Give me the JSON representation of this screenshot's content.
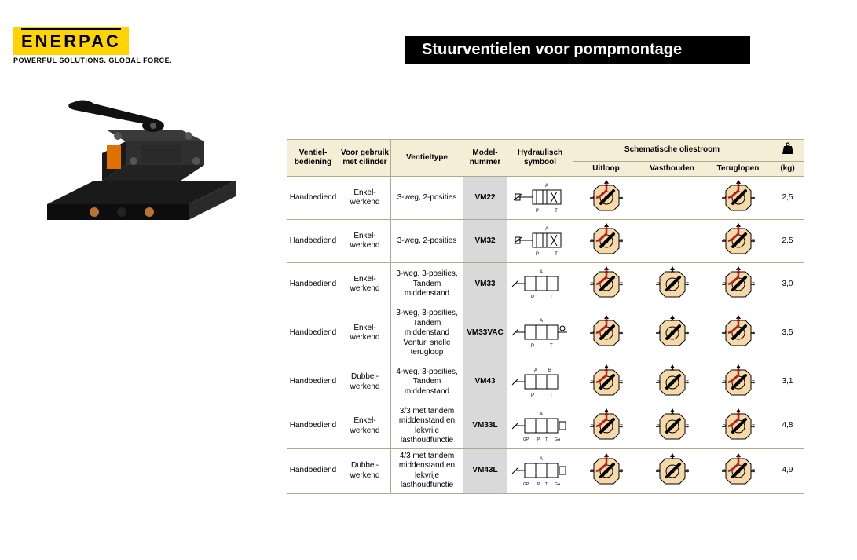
{
  "logo": {
    "brand": "ENERPAC",
    "tagline": "POWERFUL SOLUTIONS. GLOBAL FORCE."
  },
  "title": "Stuurventielen voor pompmontage",
  "colors": {
    "brand_yellow": "#ffd400",
    "header_bg": "#f5eed6",
    "border": "#b0a890",
    "model_bg": "#d9d9d9",
    "icon_fill": "#f6d9a8",
    "icon_accent": "#c21a1a",
    "black": "#000000"
  },
  "table": {
    "headers": {
      "ventiel": "Ventiel-\nbediening",
      "gebruik": "Voor gebruik\nmet cilinder",
      "type": "Ventieltype",
      "model": "Model-\nnummer",
      "hydr": "Hydraulisch\nsymbool",
      "schem": "Schematische oliestroom",
      "uitloop": "Uitloop",
      "vasthouden": "Vasthouden",
      "teruglopen": "Teruglopen",
      "weight_unit": "(kg)"
    },
    "rows": [
      {
        "ventiel": "Handbediend",
        "gebruik": "Enkel-\nwerkend",
        "type": "3-weg, 2-posities",
        "model": "VM22",
        "hydr": "3w2p",
        "uitloop": true,
        "vasthouden": false,
        "teruglopen": true,
        "weight": "2,5"
      },
      {
        "ventiel": "Handbediend",
        "gebruik": "Enkel-\nwerkend",
        "type": "3-weg, 2-posities",
        "model": "VM32",
        "hydr": "3w2p",
        "uitloop": true,
        "vasthouden": false,
        "teruglopen": true,
        "weight": "2,5"
      },
      {
        "ventiel": "Handbediend",
        "gebruik": "Enkel-\nwerkend",
        "type": "3-weg, 3-posities,\nTandem middenstand",
        "model": "VM33",
        "hydr": "3w3p",
        "uitloop": true,
        "vasthouden": true,
        "teruglopen": true,
        "weight": "3,0"
      },
      {
        "ventiel": "Handbediend",
        "gebruik": "Enkel-\nwerkend",
        "type": "3-weg, 3-posities,\nTandem middenstand\nVenturi snelle terugloop",
        "model": "VM33VAC",
        "hydr": "3w3pv",
        "uitloop": true,
        "vasthouden": true,
        "teruglopen": true,
        "weight": "3,5"
      },
      {
        "ventiel": "Handbediend",
        "gebruik": "Dubbel-\nwerkend",
        "type": "4-weg, 3-posities,\nTandem middenstand",
        "model": "VM43",
        "hydr": "4w3p",
        "uitloop": true,
        "vasthouden": true,
        "teruglopen": true,
        "weight": "3,1"
      },
      {
        "ventiel": "Handbediend",
        "gebruik": "Enkel-\nwerkend",
        "type": "3/3 met tandem\nmiddenstand en\nlekvrije\nlasthoudfunctie",
        "model": "VM33L",
        "hydr": "3w3pl",
        "uitloop": true,
        "vasthouden": true,
        "teruglopen": true,
        "weight": "4,8"
      },
      {
        "ventiel": "Handbediend",
        "gebruik": "Dubbel-\nwerkend",
        "type": "4/3 met tandem\nmiddenstand en\nlekvrije\nlasthoudfunctie",
        "model": "VM43L",
        "hydr": "4w3pl",
        "uitloop": true,
        "vasthouden": true,
        "teruglopen": true,
        "weight": "4,9"
      }
    ]
  },
  "product_image": {
    "body_color": "#1a1a1a",
    "bolt_color": "#b87333",
    "highlight": "#3a3a3a"
  }
}
